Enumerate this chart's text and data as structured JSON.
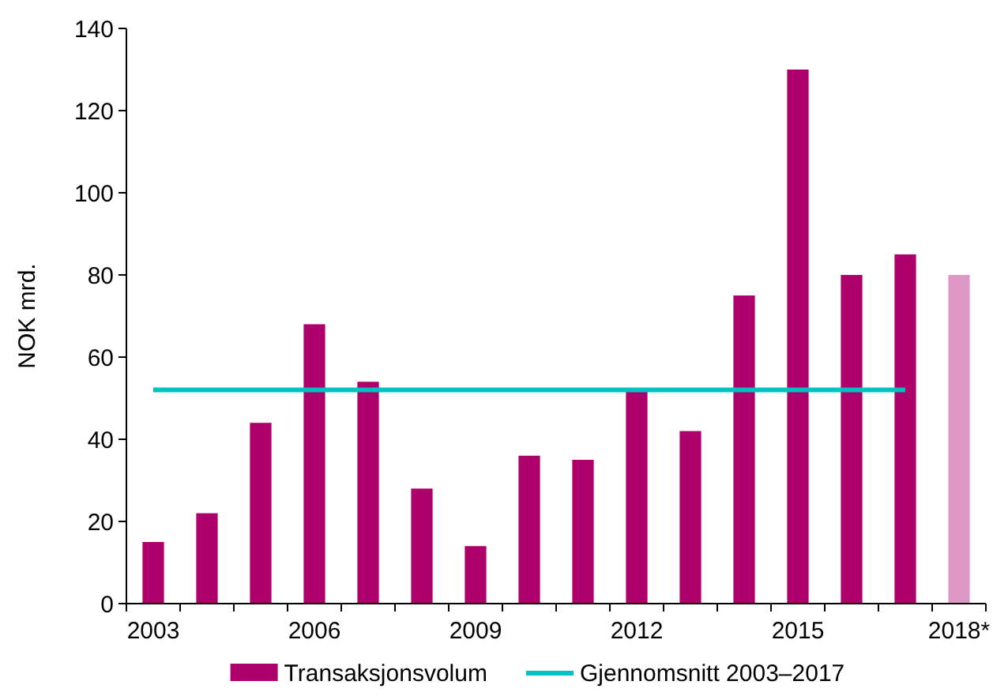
{
  "chart_data": {
    "type": "bar",
    "ylabel": "NOK mrd.",
    "categories": [
      "2003",
      null,
      null,
      "2006",
      null,
      null,
      "2009",
      null,
      null,
      "2012",
      null,
      null,
      "2015",
      null,
      null,
      "2018*"
    ],
    "series": [
      {
        "name": "Transaksjonsvolum",
        "color": "#ae006c",
        "colors": [
          "#ae006c",
          "#ae006c",
          "#ae006c",
          "#ae006c",
          "#ae006c",
          "#ae006c",
          "#ae006c",
          "#ae006c",
          "#ae006c",
          "#ae006c",
          "#ae006c",
          "#ae006c",
          "#ae006c",
          "#ae006c",
          "#ae006c",
          "#df98c6"
        ],
        "values": [
          15,
          22,
          44,
          68,
          54,
          28,
          14,
          36,
          35,
          52,
          42,
          75,
          130,
          80,
          85,
          80
        ]
      },
      {
        "name": "Gjennomsnitt 2003–2017",
        "type": "line",
        "color": "#00c0c0",
        "values": [
          52,
          52,
          52,
          52,
          52,
          52,
          52,
          52,
          52,
          52,
          52,
          52,
          52,
          52,
          52,
          null
        ]
      }
    ],
    "ylim": [
      0,
      140
    ],
    "yticks": [
      0,
      20,
      40,
      60,
      80,
      100,
      120,
      140
    ],
    "grid": false,
    "legend": "bottom",
    "marker": "none",
    "line_style": "solid"
  }
}
